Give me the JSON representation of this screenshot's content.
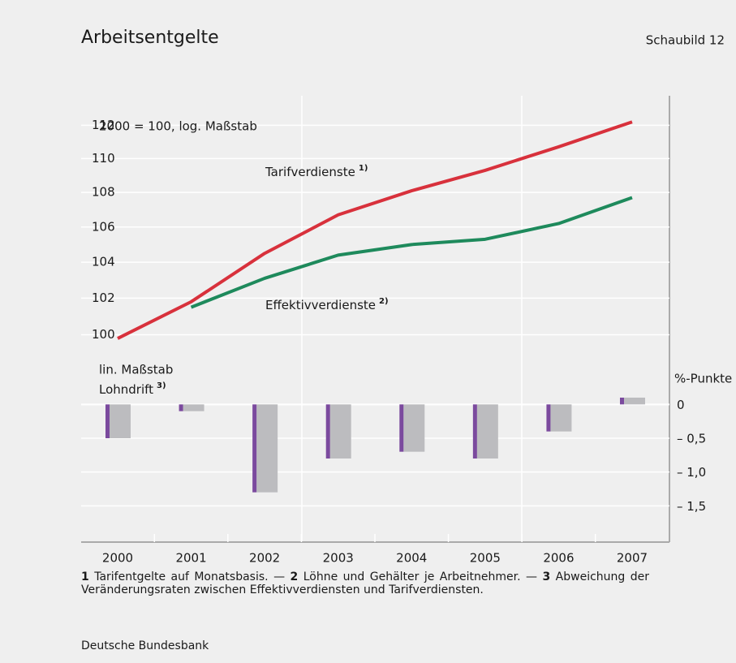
{
  "title": "Arbeitsentgelte",
  "figure_label": "Schaubild 12",
  "notes": [
    {
      "num": "1",
      "text": "Tarifentgelte auf Monatsbasis. —"
    },
    {
      "num": "2",
      "text": "Löhne und Gehälter je Arbeitnehmer. —"
    },
    {
      "num": "3",
      "text": "Abweichung der Veränderungsraten zwischen Effektivverdiensten und Tarifverdiensten."
    }
  ],
  "source": "Deutsche Bundesbank",
  "chart_data": [
    {
      "type": "line",
      "annotation": "2000 = 100, log. Maßstab",
      "log_scale": true,
      "grid": true,
      "ylim": [
        98.8,
        113.8
      ],
      "yticks": [
        100,
        102,
        104,
        106,
        108,
        110,
        112
      ],
      "series": [
        {
          "name": "Tarifverdienste",
          "note": "1)",
          "color": "#d8313c",
          "values": [
            99.8,
            101.8,
            104.5,
            106.7,
            108.1,
            109.3,
            110.7,
            112.2
          ]
        },
        {
          "name": "Effektivverdienste",
          "note": "2)",
          "color": "#1e8a5c",
          "values": [
            null,
            101.5,
            103.1,
            104.4,
            105.0,
            105.3,
            106.2,
            107.7
          ]
        }
      ]
    },
    {
      "type": "bar",
      "scale_label": "lin. Maßstab",
      "name": "Lohndrift",
      "note": "3)",
      "y_axis_label": "%-Punkte",
      "grid": true,
      "categories": [
        "2000",
        "2001",
        "2002",
        "2003",
        "2004",
        "2005",
        "2006",
        "2007"
      ],
      "values": [
        -0.5,
        -0.1,
        -1.3,
        -0.8,
        -0.7,
        -0.8,
        -0.4,
        0.1
      ],
      "color": "#bcbcbf",
      "edge_color": "#7b4a9e",
      "ylim": [
        -2.0,
        0.7
      ],
      "yticks": [
        {
          "value": 0,
          "label": "0"
        },
        {
          "value": -0.5,
          "label": "– 0,5"
        },
        {
          "value": -1.0,
          "label": "– 1,0"
        },
        {
          "value": -1.5,
          "label": "– 1,5"
        }
      ]
    }
  ]
}
